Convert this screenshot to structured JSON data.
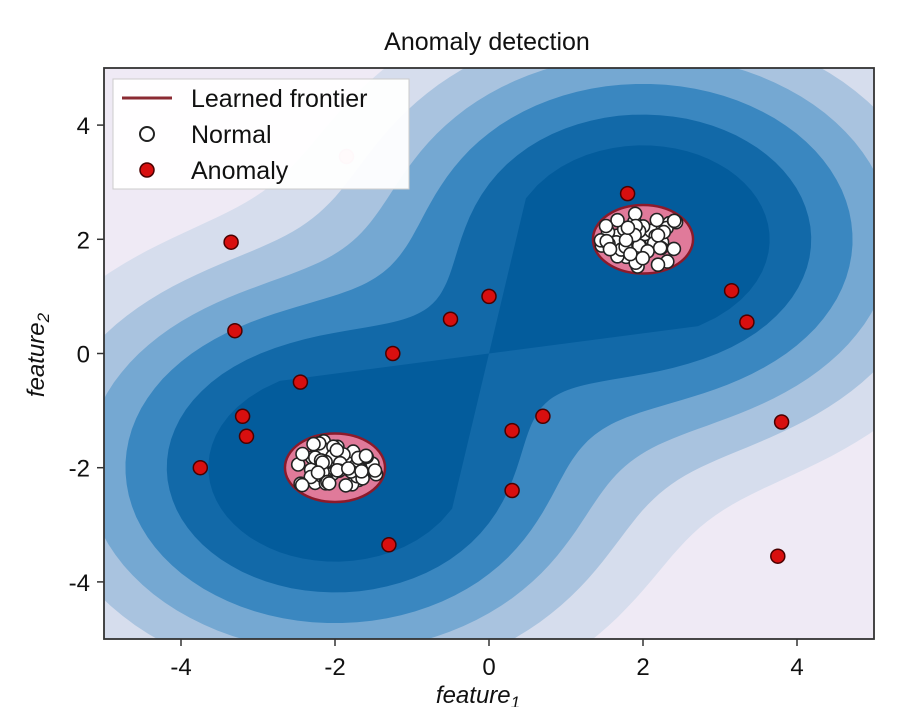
{
  "chart_data": {
    "type": "scatter",
    "title": "Anomaly detection",
    "xlabel": "feature",
    "xlabel_sub": "1",
    "ylabel": "feature",
    "ylabel_sub": "2",
    "xlim": [
      -5,
      5
    ],
    "ylim": [
      -5,
      5
    ],
    "xticks": [
      -4,
      -2,
      0,
      2,
      4
    ],
    "yticks": [
      -4,
      -2,
      0,
      2,
      4
    ],
    "grid": false,
    "legend_position": "top-left",
    "legend": [
      {
        "label": "Learned frontier",
        "kind": "line",
        "color": "#8b2b33"
      },
      {
        "label": "Normal",
        "kind": "marker",
        "fill": "#ffffff",
        "edge": "#222222"
      },
      {
        "label": "Anomaly",
        "kind": "marker",
        "fill": "#d80f0f",
        "edge": "#5a0000"
      }
    ],
    "clusters": [
      {
        "name": "Normal",
        "center": [
          2.0,
          2.0
        ],
        "spread": [
          0.55,
          0.4
        ],
        "count": 60
      },
      {
        "name": "Normal",
        "center": [
          -2.0,
          -2.0
        ],
        "spread": [
          0.55,
          0.4
        ],
        "count": 60
      }
    ],
    "frontier": [
      {
        "center": [
          2.0,
          2.0
        ],
        "radius": [
          0.65,
          0.6
        ]
      },
      {
        "center": [
          -2.0,
          -2.0
        ],
        "radius": [
          0.65,
          0.6
        ]
      }
    ],
    "anomalies": [
      [
        1.8,
        2.8
      ],
      [
        -3.35,
        1.95
      ],
      [
        -3.3,
        0.4
      ],
      [
        -1.85,
        3.45
      ],
      [
        -1.25,
        0.0
      ],
      [
        -0.5,
        0.6
      ],
      [
        0.0,
        1.0
      ],
      [
        3.15,
        1.1
      ],
      [
        3.35,
        0.55
      ],
      [
        -2.45,
        -0.5
      ],
      [
        -3.2,
        -1.1
      ],
      [
        -3.15,
        -1.45
      ],
      [
        -3.75,
        -2.0
      ],
      [
        0.3,
        -1.35
      ],
      [
        0.7,
        -1.1
      ],
      [
        0.3,
        -2.4
      ],
      [
        -1.3,
        -3.35
      ],
      [
        3.8,
        -1.2
      ],
      [
        3.75,
        -3.55
      ]
    ],
    "colors": {
      "contour_levels": [
        "#efeaf5",
        "#d6dded",
        "#a9c3df",
        "#75a8d2",
        "#3a87c0",
        "#1269a8",
        "#035c9c"
      ],
      "frontier_fill": "#e07a9a",
      "frontier_edge": "#8b1a2b",
      "normal_fill": "#ffffff",
      "normal_edge": "#222222",
      "anomaly_fill": "#d80f0f",
      "anomaly_edge": "#4a0000"
    }
  }
}
